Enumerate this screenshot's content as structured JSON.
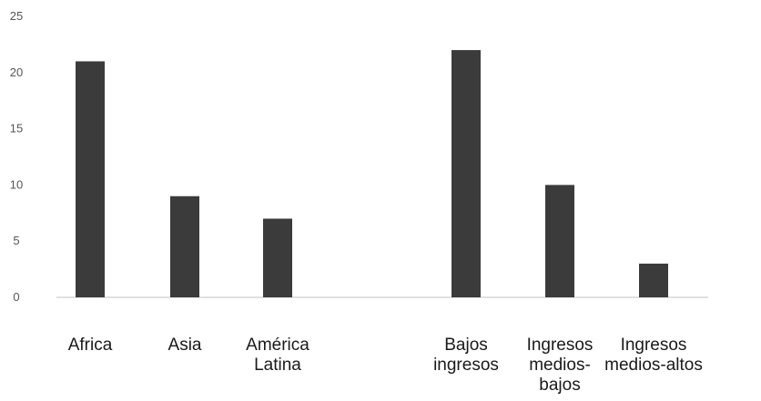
{
  "chart_data": {
    "type": "bar",
    "groups": [
      {
        "categories": [
          "Africa",
          "Asia",
          "América Latina"
        ],
        "values": [
          21,
          9,
          7
        ]
      },
      {
        "categories": [
          "Bajos ingresos",
          "Ingresos medios-bajos",
          "Ingresos medios-altos"
        ],
        "values": [
          22,
          10,
          3
        ]
      }
    ],
    "category_label_lines": [
      [
        "Africa"
      ],
      [
        "Asia"
      ],
      [
        "América",
        "Latina"
      ],
      [
        "Bajos",
        "ingresos"
      ],
      [
        "Ingresos",
        "medios-",
        "bajos"
      ],
      [
        "Ingresos",
        "medios-altos"
      ]
    ],
    "ylim": [
      0,
      25
    ],
    "yticks": [
      0,
      5,
      10,
      15,
      20,
      25
    ],
    "grid": false,
    "bar_color": "#3b3b3b",
    "axis_color": "#d6d6d6",
    "title": "",
    "xlabel": "",
    "ylabel": ""
  }
}
